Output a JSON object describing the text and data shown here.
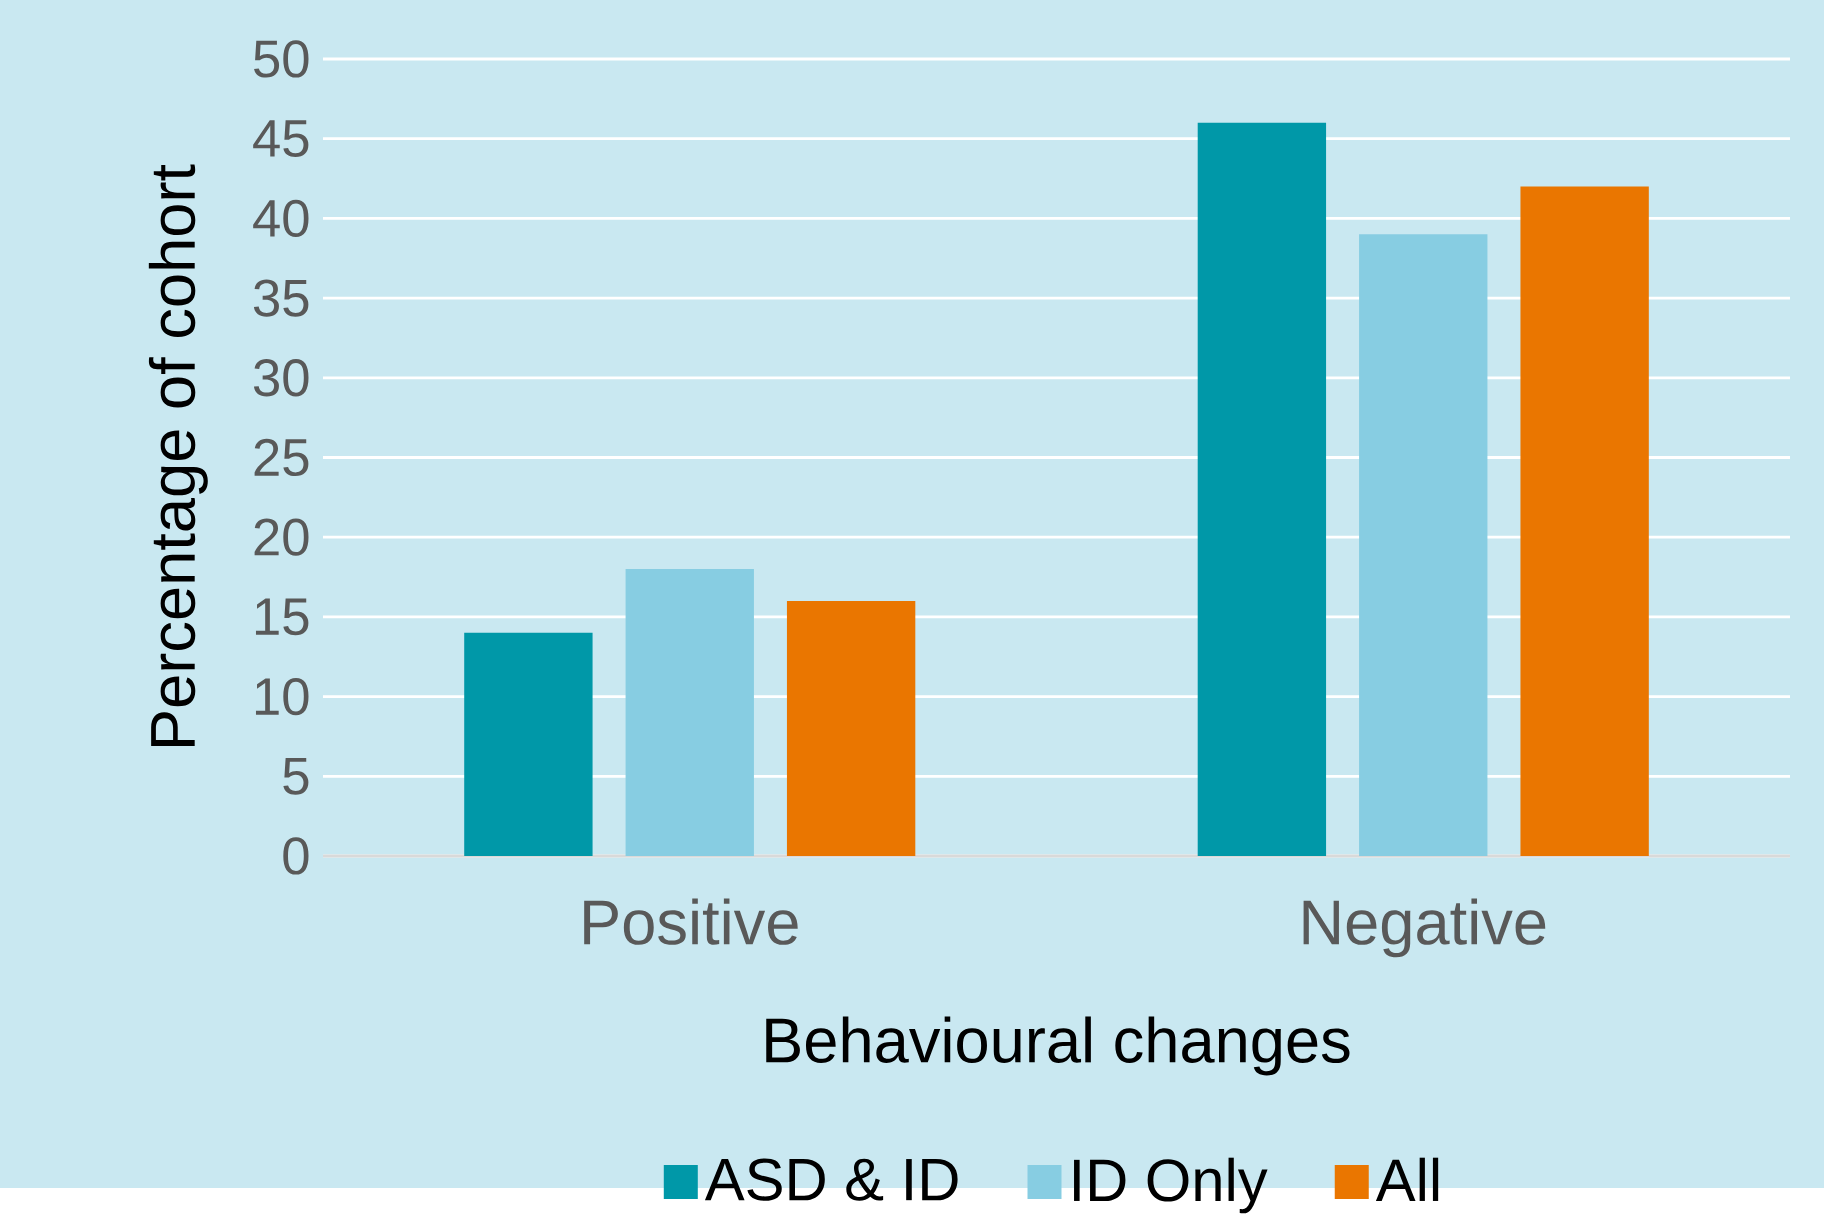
{
  "chart_data": {
    "type": "bar",
    "xlabel": "Behavioural changes",
    "ylabel": "Percentage of cohort",
    "categories": [
      "Positive",
      "Negative"
    ],
    "series": [
      {
        "name": "ASD & ID",
        "color": "#0098a8",
        "values": [
          14,
          46
        ]
      },
      {
        "name": "ID Only",
        "color": "#87cde2",
        "values": [
          18,
          39
        ]
      },
      {
        "name": "All",
        "color": "#ea7600",
        "values": [
          16,
          42
        ]
      }
    ],
    "ylim": [
      0,
      50
    ],
    "yticks": [
      0,
      5,
      10,
      15,
      20,
      25,
      30,
      35,
      40,
      45,
      50
    ],
    "grid": "y",
    "legend": "bottom"
  }
}
